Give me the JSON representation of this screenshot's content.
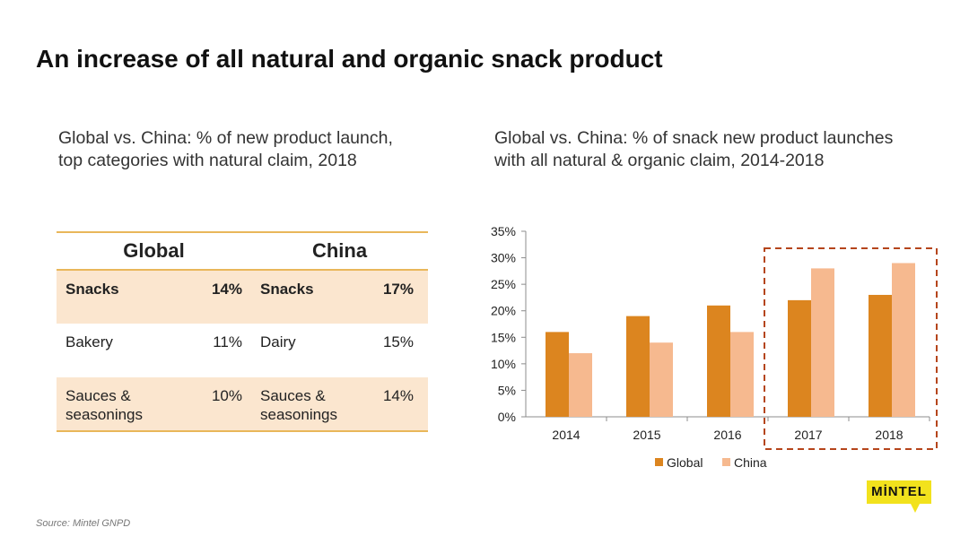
{
  "title": "An increase of all natural and organic snack product",
  "left_subtitle_lines": [
    "Global vs. China: % of new product launch,",
    "top categories with natural claim, 2018"
  ],
  "right_subtitle_lines": [
    "Global vs. China: % of snack new product launches",
    "with all natural & organic claim, 2014-2018"
  ],
  "table": {
    "headers": [
      "Global",
      "China"
    ],
    "rows": [
      {
        "global_cat": "Snacks",
        "global_val": "14%",
        "china_cat": "Snacks",
        "china_val": "17%"
      },
      {
        "global_cat": "Bakery",
        "global_val": "11%",
        "china_cat": "Dairy",
        "china_val": "15%"
      },
      {
        "global_cat": "Sauces & seasonings",
        "global_val": "10%",
        "china_cat": "Sauces & seasonings",
        "china_val": "14%"
      }
    ]
  },
  "chart_data": {
    "type": "bar",
    "categories": [
      "2014",
      "2015",
      "2016",
      "2017",
      "2018"
    ],
    "series": [
      {
        "name": "Global",
        "values": [
          16,
          19,
          21,
          22,
          23
        ],
        "color": "#dc851f"
      },
      {
        "name": "China",
        "values": [
          12,
          14,
          16,
          28,
          29
        ],
        "color": "#f6b98f"
      }
    ],
    "ylim": [
      0,
      35
    ],
    "yticks": [
      "0%",
      "5%",
      "10%",
      "15%",
      "20%",
      "25%",
      "30%",
      "35%"
    ],
    "ytick_values": [
      0,
      5,
      10,
      15,
      20,
      25,
      30,
      35
    ],
    "highlight_categories": [
      "2017",
      "2018"
    ],
    "highlight_color": "#b5451b",
    "legend_position": "bottom"
  },
  "source": "Source: Mintel GNPD",
  "logo_text": "MİNTEL"
}
